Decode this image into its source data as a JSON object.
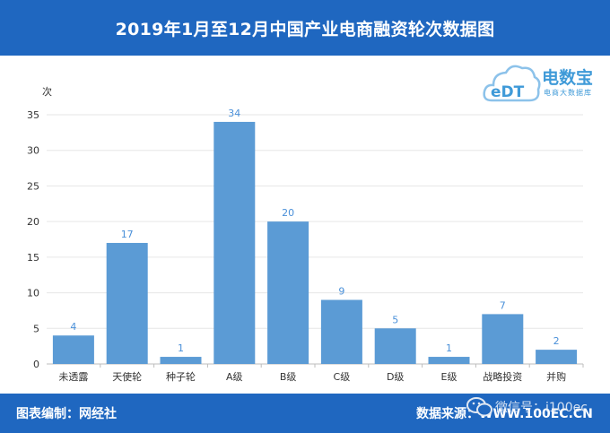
{
  "header": {
    "title": "2019年1月至12月中国产业电商融资轮次数据图"
  },
  "logo": {
    "name": "电数宝",
    "sub": "电商大数据库",
    "mark": "eDT"
  },
  "footer": {
    "credit": "图表编制：网经社",
    "source": "数据来源：WWW.100EC.CN",
    "wechat": "微信号：i100ec"
  },
  "colors": {
    "brand": "#1f67c0",
    "bar": "#5b9bd5",
    "label": "#4a90d9"
  },
  "chart_data": {
    "type": "bar",
    "title": "2019年1月至12月中国产业电商融资轮次数据图",
    "xlabel": "",
    "ylabel": "次",
    "ylim": [
      0,
      35
    ],
    "yticks": [
      0,
      5,
      10,
      15,
      20,
      25,
      30,
      35
    ],
    "grid": true,
    "categories": [
      "未透露",
      "天使轮",
      "种子轮",
      "A级",
      "B级",
      "C级",
      "D级",
      "E级",
      "战略投资",
      "并购"
    ],
    "values": [
      4,
      17,
      1,
      34,
      20,
      9,
      5,
      1,
      7,
      2
    ]
  }
}
